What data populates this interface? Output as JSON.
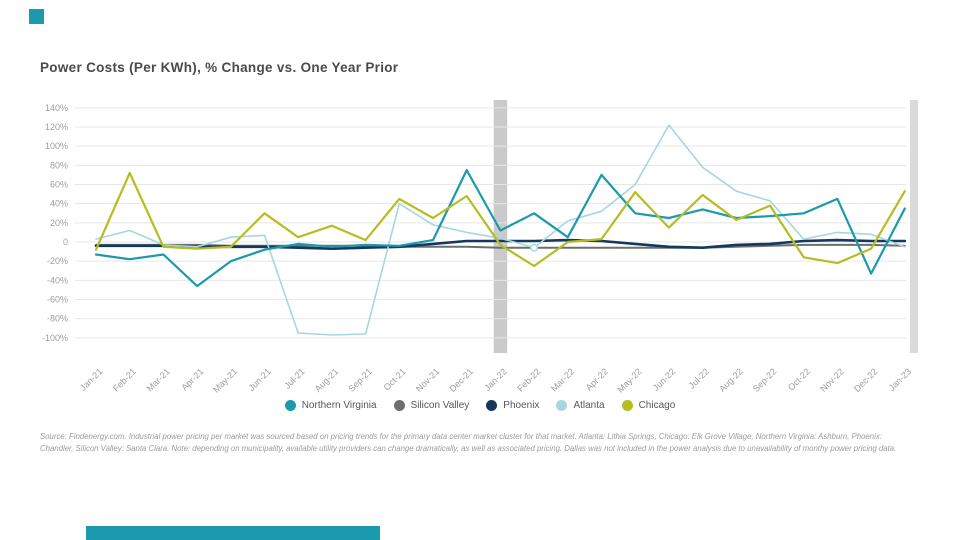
{
  "page": {
    "title": "Power Costs (Per KWh), % Change vs. One Year Prior"
  },
  "accents": {
    "corner_square_color": "#1b9aad",
    "bottom_bar_color": "#1b9aad"
  },
  "source_note": {
    "line1": "Source: Findenergy.com. Industrial power pricing per market was sourced based on pricing trends for the primary data center market cluster for that market. Atlanta: Lithia Springs, Chicago: Elk Grove Village, Northern Virginia: Ashburn, Phoenix:",
    "line2": "Chandler, Silicon Valley: Santa Clara. Note: depending on municipality, available utility providers can change dramatically, as well as associated pricing. Dallas was not included in the power analysis due to unavailability of monthy power pricing data."
  },
  "chart_data": {
    "type": "line",
    "title": "Power Costs (Per KWh), % Change vs. One Year Prior",
    "grid": true,
    "legend_position": "bottom",
    "ylim": [
      -100,
      140
    ],
    "y_tick_step": 20,
    "y_tick_labels": [
      "140%",
      "120%",
      "100%",
      "80%",
      "60%",
      "40%",
      "20%",
      "0",
      "-20%",
      "-40%",
      "-60%",
      "-80%",
      "-100%"
    ],
    "x": [
      "Jan-21",
      "Feb-21",
      "Mar-21",
      "Apr-21",
      "May-21",
      "Jun-21",
      "Jul-21",
      "Aug-21",
      "Sep-21",
      "Oct-21",
      "Nov-21",
      "Dec-21",
      "Jan-22",
      "Feb-22",
      "Mar-22",
      "Apr-22",
      "May-22",
      "Jun-22",
      "Jul-22",
      "Aug-22",
      "Sep-22",
      "Oct-22",
      "Nov-22",
      "Dec-22",
      "Jan-23"
    ],
    "series": [
      {
        "name": "Northern Virginia",
        "color": "#1b9aad",
        "width": 2.2,
        "values": [
          -13,
          -18,
          -13,
          -46,
          -20,
          -8,
          -2,
          -5,
          -3,
          -4,
          2,
          75,
          12,
          30,
          5,
          70,
          30,
          25,
          34,
          25,
          27,
          30,
          45,
          -33,
          35
        ]
      },
      {
        "name": "Silicon Valley",
        "color": "#6d6e71",
        "width": 2,
        "values": [
          -3,
          -3,
          -3,
          -3,
          -4,
          -4,
          -4,
          -4,
          -4,
          -5,
          -5,
          -5,
          -6,
          -6,
          -6,
          -6,
          -6,
          -6,
          -6,
          -5,
          -4,
          -3,
          -3,
          -3,
          -4
        ]
      },
      {
        "name": "Phoenix",
        "color": "#14395c",
        "width": 2.6,
        "values": [
          -4,
          -4,
          -4,
          -5,
          -5,
          -5,
          -6,
          -7,
          -6,
          -5,
          -2,
          1,
          1,
          1,
          2,
          1,
          -2,
          -5,
          -6,
          -3,
          -2,
          1,
          2,
          1,
          1
        ]
      },
      {
        "name": "Atlanta",
        "color": "#a6d7dd",
        "width": 1.6,
        "values": [
          3,
          12,
          -3,
          -5,
          5,
          7,
          -95,
          -97,
          -96,
          40,
          18,
          10,
          4,
          -6,
          22,
          32,
          60,
          122,
          78,
          53,
          43,
          3,
          10,
          8,
          -5
        ]
      },
      {
        "name": "Chicago",
        "color": "#b5bd20",
        "width": 2.2,
        "values": [
          -8,
          72,
          -5,
          -7,
          -5,
          30,
          5,
          17,
          2,
          45,
          25,
          48,
          -3,
          -25,
          0,
          3,
          52,
          15,
          49,
          23,
          38,
          -16,
          -22,
          -7,
          53
        ]
      }
    ],
    "highlight_band": {
      "at_x": "Jan-22",
      "color": "#cacaca"
    },
    "right_edge_band": {
      "color": "#dadada"
    },
    "point_marker": {
      "series": "Atlanta",
      "at_x": "Feb-22",
      "style": "open-circle"
    }
  }
}
